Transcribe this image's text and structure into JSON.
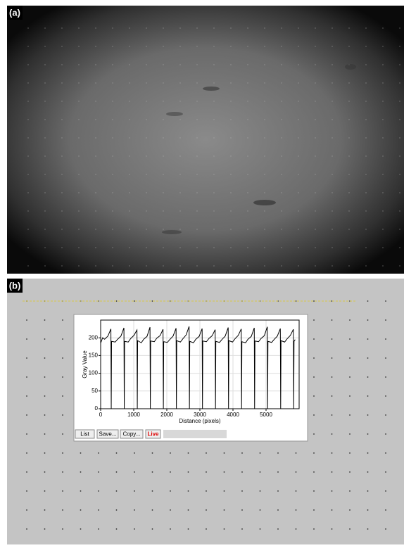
{
  "panel_labels": {
    "a": "(a)",
    "b": "(b)"
  },
  "buttons": [
    "List",
    "Save...",
    "Copy...",
    "Live"
  ],
  "chart_data": {
    "type": "line",
    "y_label": "Gray Value",
    "x_label": "Distance (pixels)",
    "x": [
      0,
      60,
      120,
      220,
      310,
      320,
      330,
      440,
      514,
      614,
      704,
      714,
      724,
      834,
      908,
      1008,
      1098,
      1108,
      1118,
      1228,
      1302,
      1402,
      1492,
      1502,
      1512,
      1622,
      1696,
      1796,
      1886,
      1896,
      1906,
      2016,
      2090,
      2190,
      2280,
      2290,
      2300,
      2410,
      2484,
      2584,
      2674,
      2684,
      2694,
      2804,
      2878,
      2978,
      3068,
      3078,
      3088,
      3198,
      3272,
      3372,
      3462,
      3472,
      3482,
      3592,
      3666,
      3766,
      3856,
      3866,
      3876,
      3986,
      4060,
      4160,
      4250,
      4260,
      4270,
      4380,
      4454,
      4554,
      4644,
      4654,
      4664,
      4774,
      4848,
      4948,
      5038,
      5048,
      5058,
      5168,
      5242,
      5342,
      5432,
      5442,
      5452,
      5562,
      5636,
      5736,
      5826,
      5836,
      5846,
      5880
    ],
    "series": [
      {
        "color": "#000000",
        "values": [
          185,
          200,
          196,
          205,
          225,
          0,
          190,
          188,
          196,
          205,
          228,
          0,
          190,
          188,
          198,
          207,
          222,
          0,
          192,
          186,
          196,
          204,
          230,
          0,
          191,
          189,
          199,
          206,
          224,
          0,
          189,
          187,
          195,
          205,
          227,
          0,
          192,
          188,
          197,
          208,
          232,
          0,
          190,
          186,
          196,
          204,
          226,
          0,
          191,
          189,
          198,
          206,
          223,
          0,
          190,
          187,
          195,
          205,
          229,
          0,
          192,
          188,
          197,
          207,
          225,
          0,
          189,
          186,
          196,
          204,
          228,
          0,
          191,
          189,
          198,
          206,
          231,
          0,
          190,
          187,
          195,
          205,
          226,
          0,
          192,
          188,
          197,
          207,
          224,
          0,
          190,
          195
        ]
      }
    ],
    "xlim": [
      0,
      6000
    ],
    "ylim": [
      0,
      250
    ],
    "xticks": [
      0,
      1000,
      2000,
      3000,
      4000,
      5000
    ],
    "yticks": [
      0,
      50,
      100,
      150,
      200
    ],
    "grid": true
  }
}
